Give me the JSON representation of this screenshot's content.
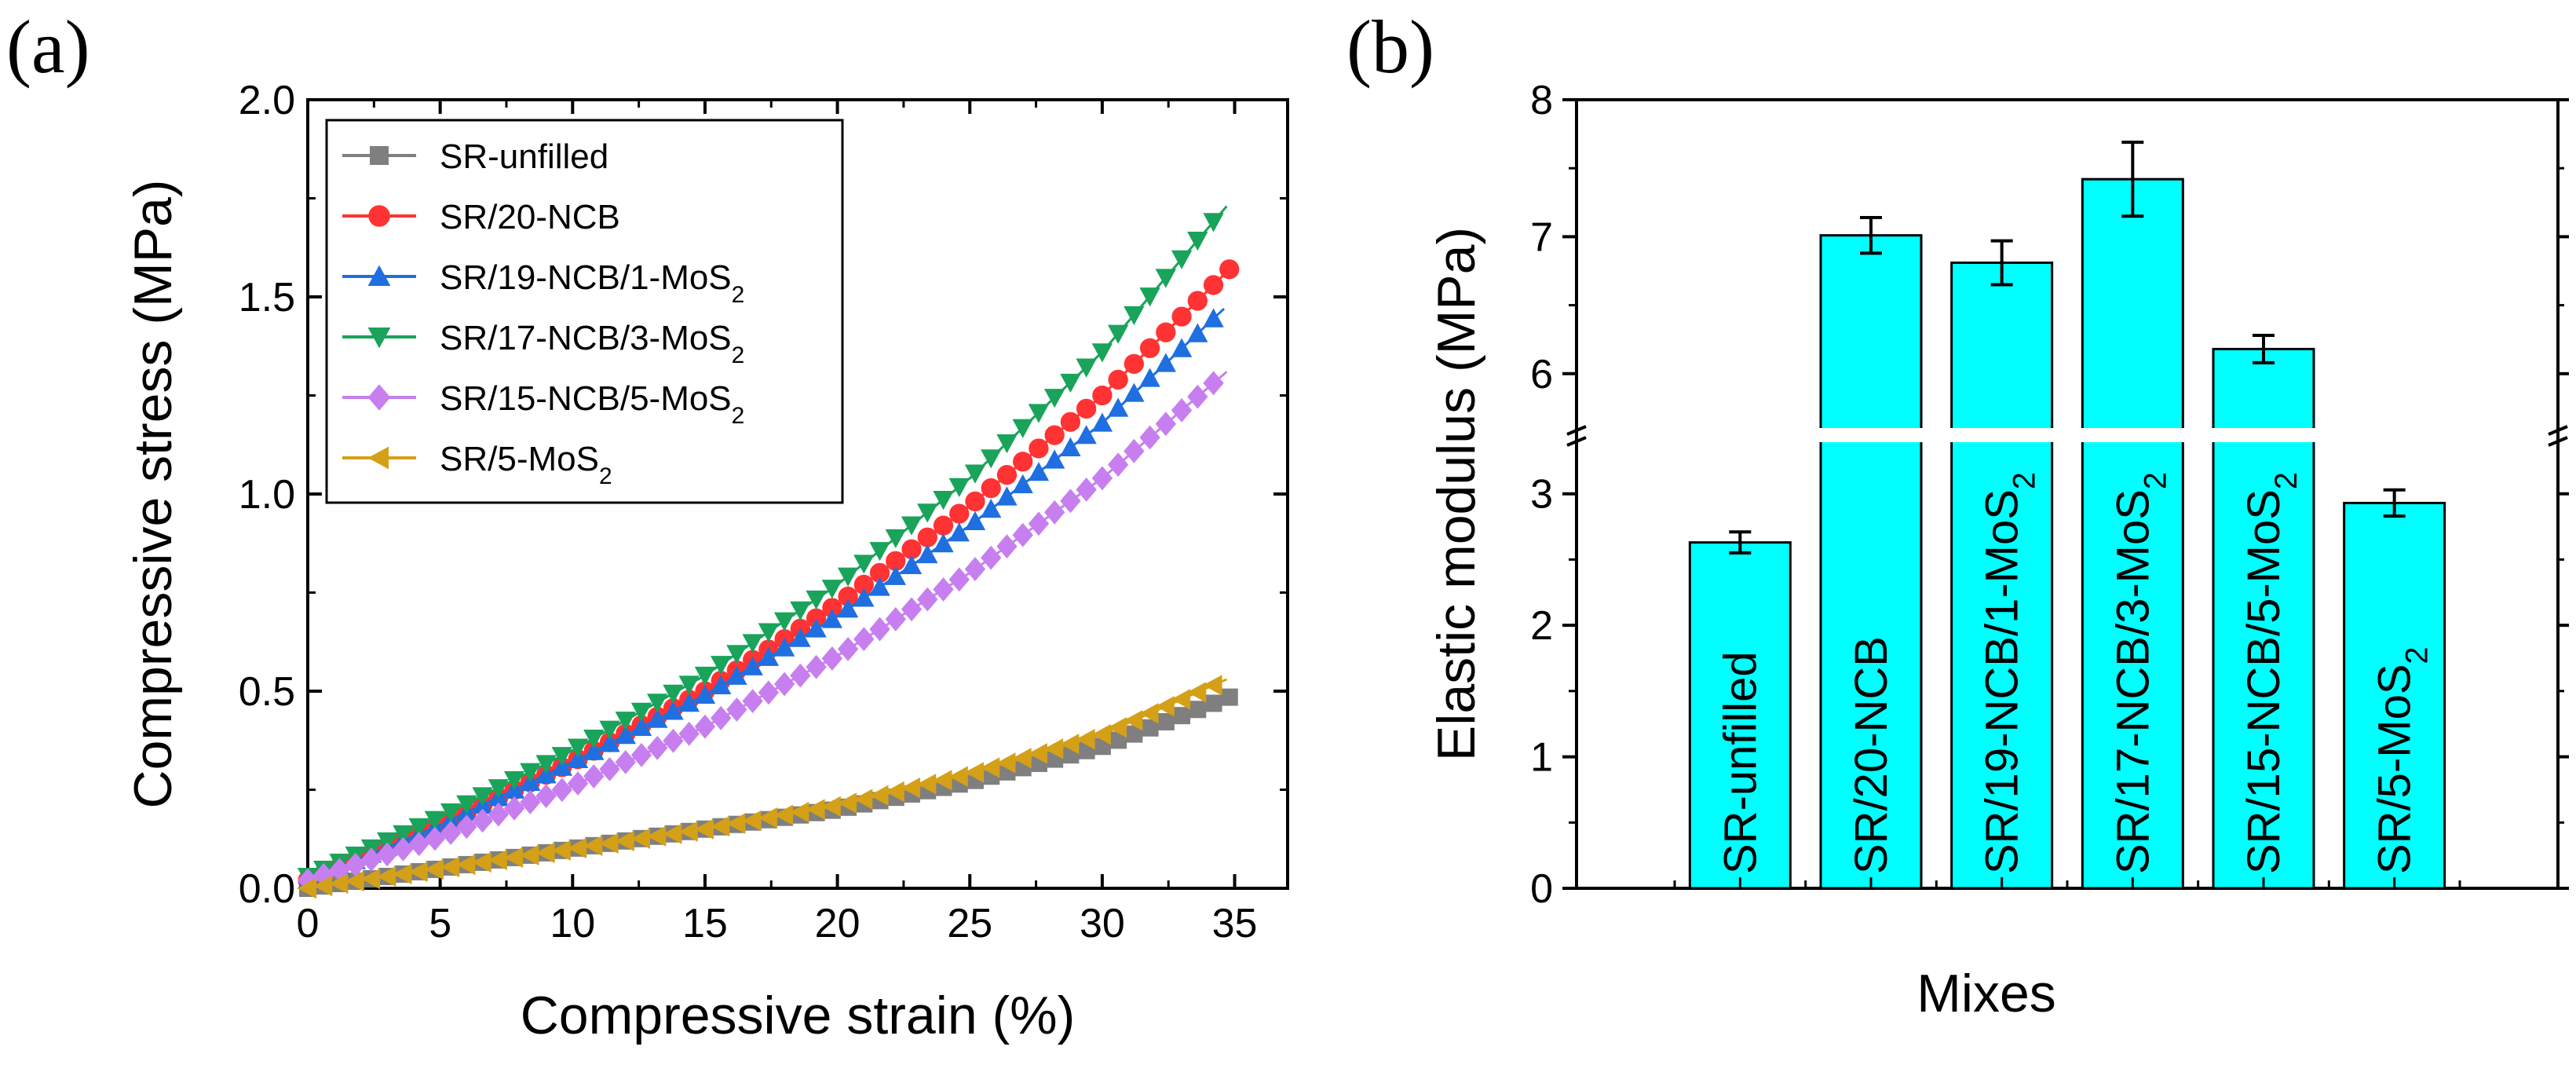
{
  "chart_data": [
    {
      "panel": "(a)",
      "type": "scatter",
      "title": "",
      "xlabel": "Compressive strain (%)",
      "ylabel": "Compressive stress (MPa)",
      "xlim": [
        0,
        37
      ],
      "ylim": [
        0,
        2.0
      ],
      "xticks": [
        0,
        5,
        10,
        15,
        20,
        25,
        30,
        35
      ],
      "xtick_labels": [
        "0",
        "5",
        "10",
        "15",
        "20",
        "25",
        "30",
        "35"
      ],
      "yticks": [
        0,
        0.5,
        1.0,
        1.5,
        2.0
      ],
      "ytick_labels": [
        "0.0",
        "0.5",
        "1.0",
        "1.5",
        "2.0"
      ],
      "legend_position": "top-left",
      "series": [
        {
          "name": "SR-unfilled",
          "sub": "",
          "color": "#7f7f7f",
          "marker": "square",
          "x": [
            0,
            5,
            10,
            15,
            20,
            25,
            30,
            35
          ],
          "y": [
            0.0,
            0.05,
            0.1,
            0.15,
            0.2,
            0.27,
            0.36,
            0.49
          ]
        },
        {
          "name": "SR/20-NCB",
          "sub": "",
          "color": "#ff3333",
          "marker": "circle",
          "x": [
            0,
            5,
            10,
            15,
            20,
            25,
            30,
            34.8
          ],
          "y": [
            0.02,
            0.16,
            0.32,
            0.5,
            0.72,
            0.97,
            1.25,
            1.57
          ]
        },
        {
          "name": "SR/19-NCB/1-MoS",
          "sub": "2",
          "color": "#1f6fe0",
          "marker": "triangle-up",
          "x": [
            0,
            5,
            10,
            15,
            20,
            25,
            30,
            34.6
          ],
          "y": [
            0.02,
            0.16,
            0.32,
            0.49,
            0.69,
            0.92,
            1.18,
            1.47
          ]
        },
        {
          "name": "SR/17-NCB/3-MoS",
          "sub": "2",
          "color": "#1aa35a",
          "marker": "triangle-down",
          "x": [
            0,
            5,
            10,
            15,
            20,
            25,
            30,
            34.7
          ],
          "y": [
            0.03,
            0.18,
            0.35,
            0.54,
            0.77,
            1.04,
            1.36,
            1.73
          ]
        },
        {
          "name": "SR/15-NCB/5-MoS",
          "sub": "2",
          "color": "#c77ff0",
          "marker": "diamond",
          "x": [
            0,
            5,
            10,
            15,
            20,
            25,
            30,
            34.7
          ],
          "y": [
            0.02,
            0.13,
            0.26,
            0.41,
            0.59,
            0.8,
            1.04,
            1.31
          ]
        },
        {
          "name": "SR/5-MoS",
          "sub": "2",
          "color": "#d4a017",
          "marker": "triangle-left",
          "x": [
            0,
            5,
            10,
            15,
            20,
            25,
            30,
            34.7
          ],
          "y": [
            0.0,
            0.05,
            0.1,
            0.15,
            0.21,
            0.29,
            0.39,
            0.53
          ]
        }
      ]
    },
    {
      "panel": "(b)",
      "type": "bar",
      "title": "",
      "xlabel": "Mixes",
      "ylabel": "Elastic modulus (MPa)",
      "ylim_lower": [
        0,
        3.5
      ],
      "ylim_upper": [
        5.5,
        8
      ],
      "axis_break": true,
      "yticks": [
        0,
        1,
        2,
        3,
        6,
        7,
        8
      ],
      "ytick_labels": [
        "0",
        "1",
        "2",
        "3",
        "6",
        "7",
        "8"
      ],
      "bar_color": "#00ffff",
      "categories": [
        {
          "name": "SR-unfilled",
          "sub": ""
        },
        {
          "name": "SR/20-NCB",
          "sub": ""
        },
        {
          "name": "SR/19-NCB/1-MoS",
          "sub": "2"
        },
        {
          "name": "SR/17-NCB/3-MoS",
          "sub": "2"
        },
        {
          "name": "SR/15-NCB/5-MoS",
          "sub": "2"
        },
        {
          "name": "SR/5-MoS",
          "sub": "2"
        }
      ],
      "values": [
        2.63,
        7.01,
        6.81,
        7.42,
        6.18,
        2.93
      ],
      "errors": [
        0.08,
        0.13,
        0.16,
        0.27,
        0.1,
        0.1
      ]
    }
  ]
}
